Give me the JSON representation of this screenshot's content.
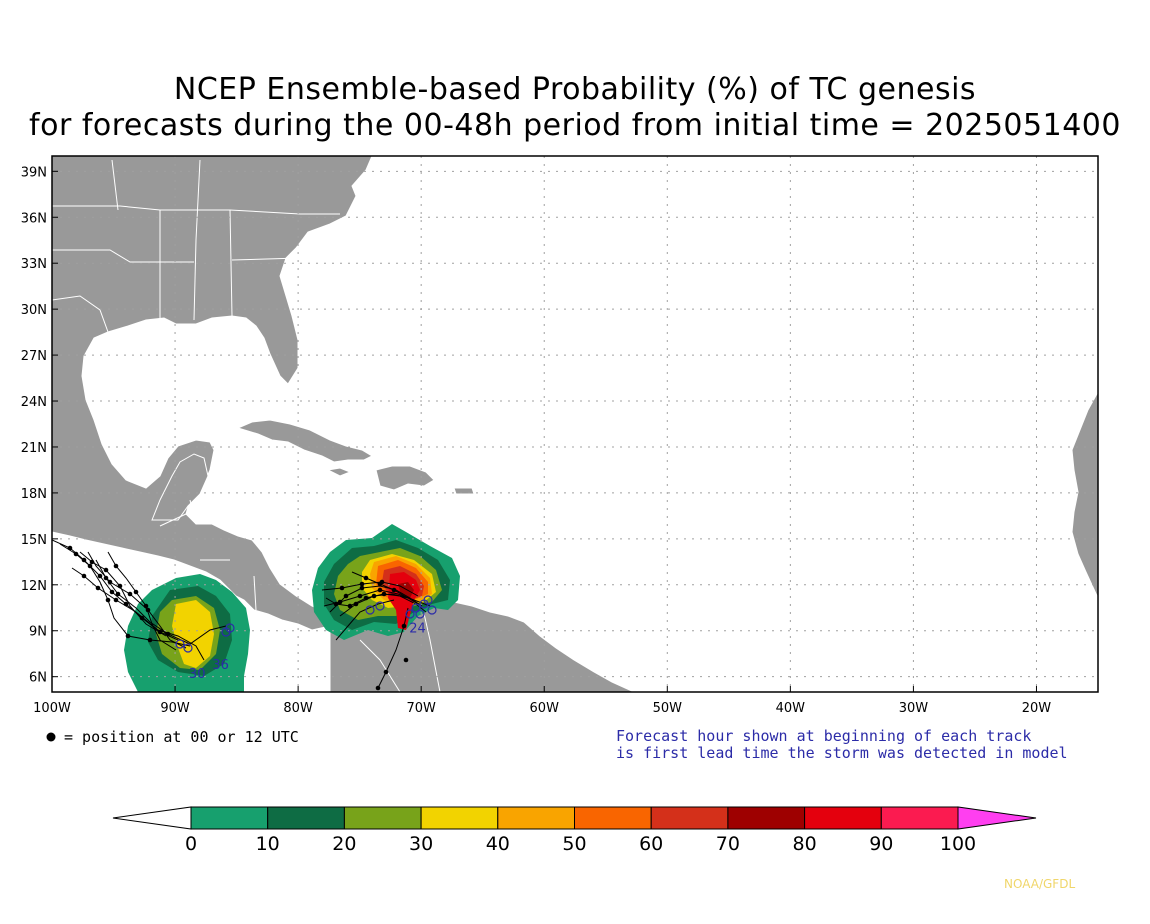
{
  "title_line1": "NCEP Ensemble-based Probability (%) of TC genesis",
  "title_line2": "for forecasts during the 00-48h period from initial time = 2025051400",
  "map": {
    "lon_min": -100,
    "lon_max": -15,
    "lat_min": 5,
    "lat_max": 40,
    "lat_labels": [
      "39N",
      "36N",
      "33N",
      "30N",
      "27N",
      "24N",
      "21N",
      "18N",
      "15N",
      "12N",
      "9N",
      "6N"
    ],
    "lon_labels": [
      "100W",
      "90W",
      "80W",
      "70W",
      "60W",
      "50W",
      "40W",
      "30W",
      "20W"
    ]
  },
  "track_hour_labels": [
    {
      "text": "24",
      "lon": -70.3,
      "lat": 8.9
    },
    {
      "text": "30",
      "lon": -88.2,
      "lat": 5.9
    },
    {
      "text": "36",
      "lon": -86.3,
      "lat": 6.5
    }
  ],
  "legend": {
    "position_note": "= position at 00 or 12 UTC",
    "forecast_note_line1": "Forecast hour shown at beginning of each track",
    "forecast_note_line2": "is first lead time the storm was detected in model"
  },
  "colorbar": {
    "labels": [
      "0",
      "10",
      "20",
      "30",
      "40",
      "50",
      "60",
      "70",
      "80",
      "90",
      "100"
    ],
    "colors": [
      "#17a06e",
      "#0e6c44",
      "#78a31a",
      "#f2d300",
      "#f9a400",
      "#f96500",
      "#d4301a",
      "#9e0000",
      "#e4000d",
      "#fb1b50"
    ],
    "over_color": "#ff3ff0",
    "under_color": "#ffffff"
  },
  "credit": "NOAA/GFDL"
}
